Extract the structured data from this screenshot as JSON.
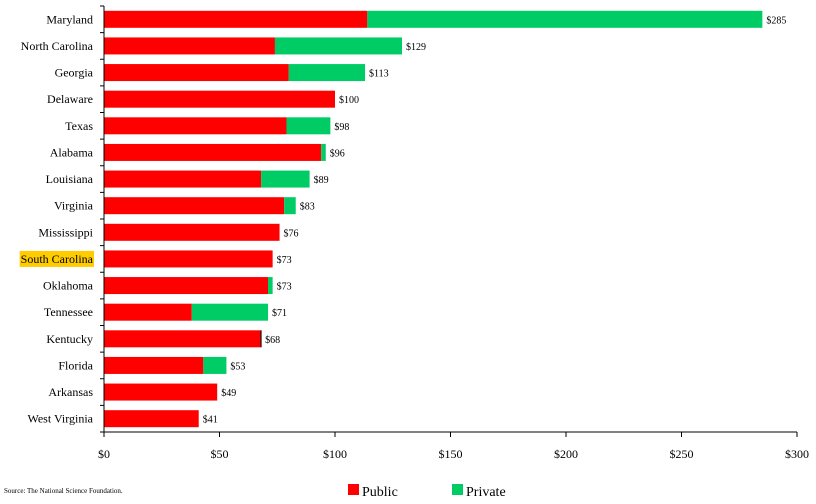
{
  "source": "Source:  The National Science Foundation.",
  "colors": {
    "public": "#ff0000",
    "private": "#00cc66",
    "highlight": "#ffcc00",
    "axis": "#000000"
  },
  "chart_data": {
    "type": "bar",
    "orientation": "horizontal",
    "stacked": true,
    "title": "",
    "xlabel": "",
    "ylabel": "",
    "xlim": [
      0,
      300
    ],
    "x_ticks": [
      "$0",
      "$50",
      "$100",
      "$150",
      "$200",
      "$250",
      "$300"
    ],
    "x_tick_values": [
      0,
      50,
      100,
      150,
      200,
      250,
      300
    ],
    "grid": false,
    "legend_position": "bottom-center",
    "highlighted_category": "South Carolina",
    "categories": [
      "Maryland",
      "North Carolina",
      "Georgia",
      "Delaware",
      "Texas",
      "Alabama",
      "Louisiana",
      "Virginia",
      "Mississippi",
      "South Carolina",
      "Oklahoma",
      "Tennessee",
      "Kentucky",
      "Florida",
      "Arkansas",
      "West Virginia"
    ],
    "series": [
      {
        "name": "Public",
        "values": [
          114,
          74,
          80,
          100,
          79,
          94,
          68,
          78,
          76,
          73,
          71,
          38,
          68,
          43,
          49,
          41
        ]
      },
      {
        "name": "Private",
        "values": [
          171,
          55,
          33,
          0,
          19,
          2,
          21,
          5,
          0,
          0,
          2,
          33,
          0,
          10,
          0,
          0
        ]
      }
    ],
    "total_labels": [
      "$285",
      "$129",
      "$113",
      "$100",
      "$98",
      "$96",
      "$89",
      "$83",
      "$76",
      "$73",
      "$73",
      "$71",
      "$68",
      "$53",
      "$49",
      "$41"
    ]
  }
}
